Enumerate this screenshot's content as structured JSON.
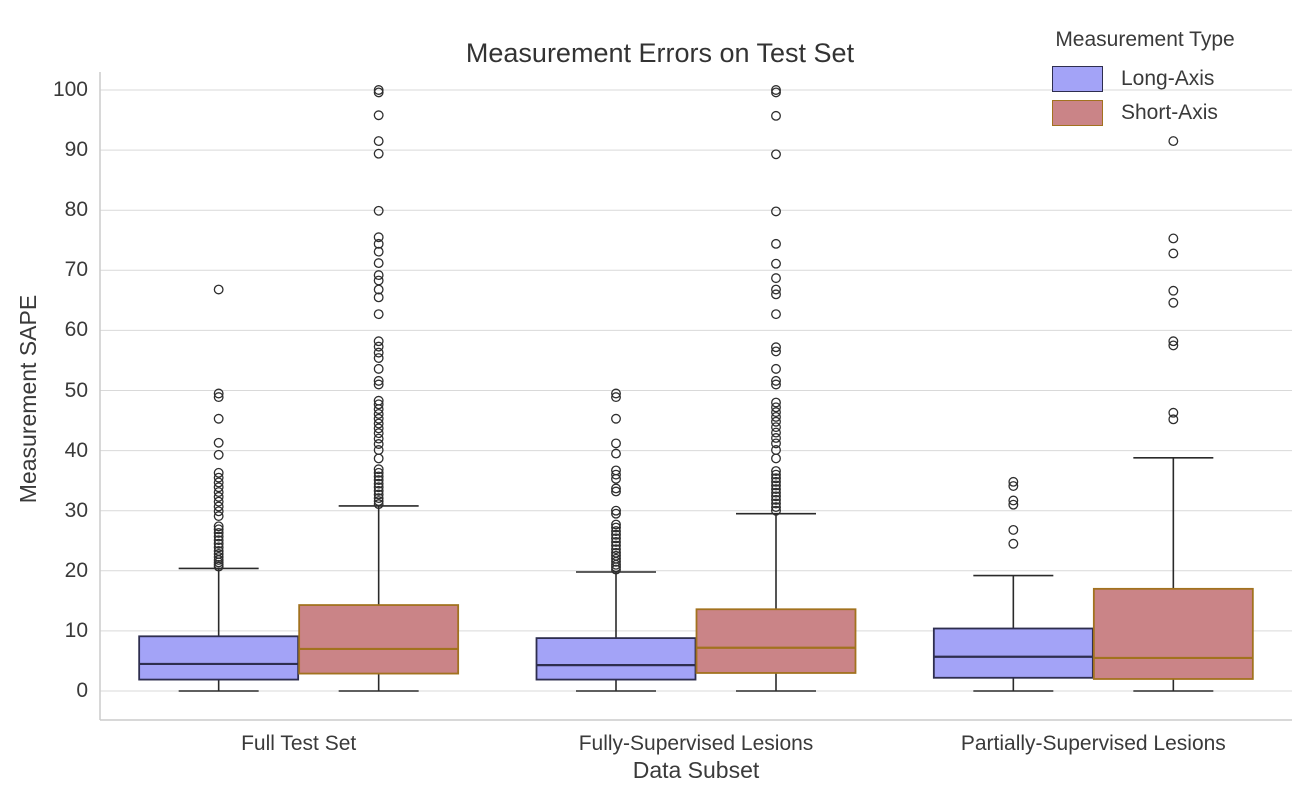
{
  "chart_data": {
    "type": "boxplot",
    "title": "Measurement Errors on Test Set",
    "xlabel": "Data Subset",
    "ylabel": "Measurement SAPE",
    "ylim": [
      0,
      100
    ],
    "yticks": [
      0,
      10,
      20,
      30,
      40,
      50,
      60,
      70,
      80,
      90,
      100
    ],
    "grid": "horizontal",
    "legend": {
      "title": "Measurement Type",
      "position": "upper-right"
    },
    "categories": [
      "Full Test Set",
      "Fully-Supervised Lesions",
      "Partially-Supervised Lesions"
    ],
    "series": [
      {
        "name": "Long-Axis",
        "fill_color": "#a3a3f7",
        "edge_color": "#2e2e4f",
        "boxes": [
          {
            "category": "Full Test Set",
            "whislo": 0,
            "q1": 1.9,
            "med": 4.5,
            "q3": 9.1,
            "whishi": 20.4,
            "outliers": [
              20.7,
              21.0,
              21.4,
              21.8,
              22.3,
              22.8,
              23.3,
              23.9,
              24.5,
              25.1,
              25.7,
              26.3,
              26.9,
              27.4,
              29.1,
              29.9,
              30.7,
              31.5,
              32.3,
              33.1,
              33.9,
              34.7,
              35.5,
              36.3,
              39.3,
              41.3,
              45.3,
              48.9,
              49.5,
              66.8
            ]
          },
          {
            "category": "Fully-Supervised Lesions",
            "whislo": 0,
            "q1": 1.9,
            "med": 4.3,
            "q3": 8.8,
            "whishi": 19.8,
            "outliers": [
              20.2,
              20.6,
              21.0,
              21.5,
              22.0,
              22.5,
              23.0,
              23.6,
              24.2,
              24.8,
              25.4,
              26.0,
              26.6,
              27.2,
              27.7,
              29.5,
              30.0,
              33.2,
              33.7,
              35.3,
              36.0,
              36.7,
              39.5,
              41.2,
              45.3,
              48.9,
              49.5
            ]
          },
          {
            "category": "Partially-Supervised Lesions",
            "whislo": 0,
            "q1": 2.2,
            "med": 5.7,
            "q3": 10.4,
            "whishi": 19.2,
            "outliers": [
              24.5,
              26.8,
              31.0,
              31.7,
              34.1,
              34.8
            ]
          }
        ]
      },
      {
        "name": "Short-Axis",
        "fill_color": "#ca8487",
        "edge_color": "#a2721f",
        "boxes": [
          {
            "category": "Full Test Set",
            "whislo": 0,
            "q1": 2.9,
            "med": 7.0,
            "q3": 14.3,
            "whishi": 30.8,
            "outliers": [
              31.1,
              31.6,
              32.1,
              32.7,
              33.3,
              33.9,
              34.5,
              35.1,
              35.7,
              36.3,
              36.9,
              38.7,
              40.1,
              41.1,
              42.0,
              42.9,
              43.7,
              44.5,
              45.3,
              46.1,
              46.9,
              47.7,
              48.3,
              51.0,
              51.6,
              53.6,
              55.4,
              56.3,
              57.3,
              58.2,
              62.7,
              65.5,
              66.8,
              68.3,
              69.2,
              71.2,
              73.1,
              74.4,
              75.5,
              79.9,
              89.4,
              91.5,
              95.8,
              99.6,
              100.0
            ]
          },
          {
            "category": "Fully-Supervised Lesions",
            "whislo": 0,
            "q1": 3.0,
            "med": 7.2,
            "q3": 13.6,
            "whishi": 29.5,
            "outliers": [
              30.0,
              30.6,
              31.2,
              31.8,
              32.4,
              33.0,
              33.6,
              34.2,
              34.8,
              35.4,
              36.0,
              36.6,
              38.7,
              40.1,
              41.2,
              42.1,
              43.0,
              43.9,
              44.8,
              45.6,
              46.4,
              47.2,
              48.0,
              51.0,
              51.6,
              53.6,
              56.5,
              57.2,
              62.7,
              66.0,
              66.8,
              68.7,
              71.1,
              74.4,
              79.8,
              89.3,
              95.7,
              99.6,
              100.0
            ]
          },
          {
            "category": "Partially-Supervised Lesions",
            "whislo": 0,
            "q1": 2.0,
            "med": 5.5,
            "q3": 17.0,
            "whishi": 38.8,
            "outliers": [
              45.2,
              46.3,
              57.5,
              58.2,
              64.6,
              66.6,
              72.8,
              75.3,
              91.5
            ]
          }
        ]
      }
    ],
    "style": {
      "gridline_color": "#d9d9d9",
      "spine_color": "#cccccc",
      "whisker_color": "#2a2a2a",
      "outlier_color": "#2e2e2e",
      "text_color": "#3a3a3a",
      "background": "#ffffff"
    }
  }
}
